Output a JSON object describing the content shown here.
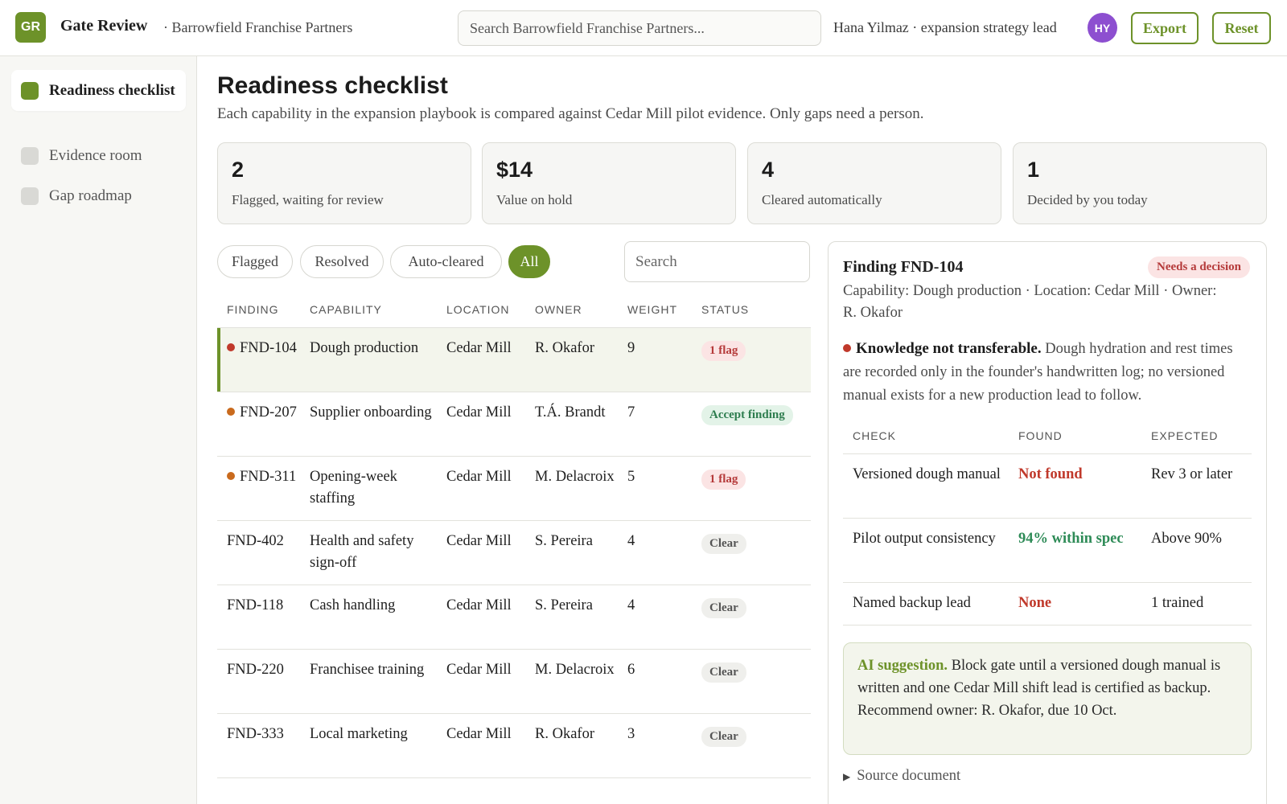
{
  "app": {
    "logo_initials": "GR",
    "title": "Gate Review",
    "org": "· Barrowfield Franchise Partners",
    "search_placeholder": "Search Barrowfield Franchise Partners...",
    "user_label": "Hana Yilmaz · expansion strategy lead",
    "avatar_initials": "HY",
    "export_label": "Export",
    "reset_label": "Reset",
    "accent_color": "#6d9229"
  },
  "sidebar": {
    "items": [
      {
        "label": "Readiness checklist",
        "active": true
      },
      {
        "label": "Evidence room",
        "active": false
      },
      {
        "label": "Gap roadmap",
        "active": false
      }
    ]
  },
  "main": {
    "title": "Readiness checklist",
    "subtitle": "Each capability in the expansion playbook is compared against Cedar Mill pilot evidence. Only gaps need a person.",
    "stats": [
      {
        "value": "2",
        "label": "Flagged, waiting for review"
      },
      {
        "value": "$14",
        "label": "Value on hold"
      },
      {
        "value": "4",
        "label": "Cleared automatically"
      },
      {
        "value": "1",
        "label": "Decided by you today"
      }
    ],
    "filters": [
      {
        "label": "Flagged",
        "active": false
      },
      {
        "label": "Resolved",
        "active": false
      },
      {
        "label": "Auto-cleared",
        "active": false
      },
      {
        "label": "All",
        "active": true
      }
    ],
    "table_search_placeholder": "Search"
  },
  "table": {
    "headers": {
      "finding": "FINDING",
      "capability": "CAPABILITY",
      "location": "LOCATION",
      "owner": "OWNER",
      "weight": "WEIGHT",
      "status": "STATUS"
    },
    "rows": [
      {
        "finding": "FND-104",
        "dot": "#c0392b",
        "capability": "Dough production",
        "location": "Cedar Mill",
        "owner": "R. Okafor",
        "weight": "9",
        "status": "1 flag",
        "status_kind": "flag",
        "selected": true
      },
      {
        "finding": "FND-207",
        "dot": "#c96a1d",
        "capability": "Supplier onboarding",
        "location": "Cedar Mill",
        "owner": "T.Á. Brandt",
        "weight": "7",
        "status": "Accept finding",
        "status_kind": "accept",
        "selected": false
      },
      {
        "finding": "FND-311",
        "dot": "#c96a1d",
        "capability": "Opening-week staffing",
        "location": "Cedar Mill",
        "owner": "M. Delacroix",
        "weight": "5",
        "status": "1 flag",
        "status_kind": "flag",
        "selected": false
      },
      {
        "finding": "FND-402",
        "dot": "",
        "capability": "Health and safety sign-off",
        "location": "Cedar Mill",
        "owner": "S. Pereira",
        "weight": "4",
        "status": "Clear",
        "status_kind": "clear",
        "selected": false
      },
      {
        "finding": "FND-118",
        "dot": "",
        "capability": "Cash handling",
        "location": "Cedar Mill",
        "owner": "S. Pereira",
        "weight": "4",
        "status": "Clear",
        "status_kind": "clear",
        "selected": false
      },
      {
        "finding": "FND-220",
        "dot": "",
        "capability": "Franchisee training",
        "location": "Cedar Mill",
        "owner": "M. Delacroix",
        "weight": "6",
        "status": "Clear",
        "status_kind": "clear",
        "selected": false
      },
      {
        "finding": "FND-333",
        "dot": "",
        "capability": "Local marketing",
        "location": "Cedar Mill",
        "owner": "R. Okafor",
        "weight": "3",
        "status": "Clear",
        "status_kind": "clear",
        "selected": false
      }
    ]
  },
  "detail": {
    "title": "Finding FND-104",
    "badge": "Needs a decision",
    "meta": "Capability: Dough production · Location: Cedar Mill · Owner: R. Okafor",
    "finding_heading": "Knowledge not transferable.",
    "finding_body": " Dough hydration and rest times are recorded only in the founder's handwritten log; no versioned manual exists for a new production lead to follow.",
    "checks_headers": {
      "check": "CHECK",
      "found": "FOUND",
      "expected": "EXPECTED"
    },
    "checks": [
      {
        "check": "Versioned dough manual",
        "found": "Not found",
        "found_color": "#c0392b",
        "expected": "Rev 3 or later"
      },
      {
        "check": "Pilot output consistency",
        "found": "94% within spec",
        "found_color": "#2e8b57",
        "expected": "Above 90%"
      },
      {
        "check": "Named backup lead",
        "found": "None",
        "found_color": "#c0392b",
        "expected": "1 trained"
      }
    ],
    "ai_lead": "AI suggestion.",
    "ai_body": " Block gate until a versioned dough manual is written and one Cedar Mill shift lead is certified as backup. Recommend owner: R. Okafor, due 10 Oct.",
    "source_label": "Source document"
  }
}
